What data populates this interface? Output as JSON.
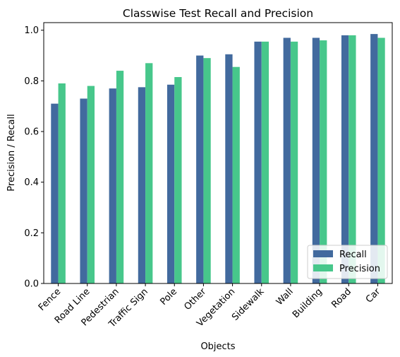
{
  "chart_data": {
    "type": "bar",
    "title": "Classwise Test Recall and Precision",
    "xlabel": "Objects",
    "ylabel": "Precision / Recall",
    "ylim": [
      0,
      1.03
    ],
    "yticks": [
      "0.0",
      "0.2",
      "0.4",
      "0.6",
      "0.8",
      "1.0"
    ],
    "grid": false,
    "legend_position": "bottom-right",
    "categories": [
      "Fence",
      "Road Line",
      "Pedestrian",
      "Traffic Sign",
      "Pole",
      "Other",
      "Vegetation",
      "Sidewalk",
      "Wall",
      "Building",
      "Road",
      "Car"
    ],
    "series": [
      {
        "name": "Recall",
        "color": "#426a9e",
        "values": [
          0.71,
          0.73,
          0.77,
          0.775,
          0.785,
          0.9,
          0.905,
          0.955,
          0.97,
          0.97,
          0.98,
          0.985
        ]
      },
      {
        "name": "Precision",
        "color": "#47c78b",
        "values": [
          0.79,
          0.78,
          0.84,
          0.87,
          0.815,
          0.89,
          0.855,
          0.955,
          0.955,
          0.96,
          0.98,
          0.97
        ]
      }
    ]
  }
}
